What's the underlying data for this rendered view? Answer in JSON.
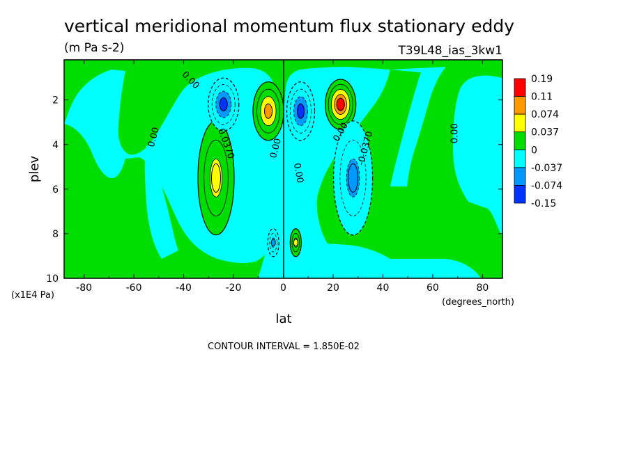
{
  "chart_data": {
    "type": "heatmap",
    "title": "vertical meridional momentum flux stationary eddy",
    "units": "(m Pa s-2)",
    "run_label": "T39L48_ias_3kw1",
    "xlabel": "lat",
    "x_units": "(degrees_north)",
    "ylabel": "plev",
    "y_units": "(x1E4 Pa)",
    "xlim": [
      -88,
      88
    ],
    "ylim": [
      10,
      0.2
    ],
    "x_ticks": [
      {
        "value": -80,
        "label": "-80"
      },
      {
        "value": -60,
        "label": "-60"
      },
      {
        "value": -40,
        "label": "-40"
      },
      {
        "value": -20,
        "label": "-20"
      },
      {
        "value": 0,
        "label": "0"
      },
      {
        "value": 20,
        "label": "20"
      },
      {
        "value": 40,
        "label": "40"
      },
      {
        "value": 60,
        "label": "60"
      },
      {
        "value": 80,
        "label": "80"
      }
    ],
    "y_ticks": [
      {
        "value": 2,
        "label": "2"
      },
      {
        "value": 4,
        "label": "4"
      },
      {
        "value": 6,
        "label": "6"
      },
      {
        "value": 8,
        "label": "8"
      },
      {
        "value": 10,
        "label": "10"
      }
    ],
    "contour_interval_text": "CONTOUR INTERVAL = 1.850E-02",
    "colorbar": {
      "colors": [
        "#ff0000",
        "#ff9900",
        "#ffff00",
        "#00dd00",
        "#00ffff",
        "#0099ff",
        "#0033ff"
      ],
      "labels": [
        "0.19",
        "0.11",
        "0.074",
        "0.037",
        "0",
        "-0.037",
        "-0.074",
        "-0.15"
      ]
    },
    "features": [
      {
        "kind": "max",
        "lat": 23,
        "plev": 2.2,
        "value": 0.15
      },
      {
        "kind": "max",
        "lat": -6,
        "plev": 2.5,
        "value": 0.09
      },
      {
        "kind": "max",
        "lat": -27,
        "plev": 5.5,
        "value": 0.045
      },
      {
        "kind": "max",
        "lat": 5,
        "plev": 8.4,
        "value": 0.04
      },
      {
        "kind": "min",
        "lat": -24,
        "plev": 2.2,
        "value": -0.09
      },
      {
        "kind": "min",
        "lat": 7,
        "plev": 2.5,
        "value": -0.09
      },
      {
        "kind": "min",
        "lat": 28,
        "plev": 5.5,
        "value": -0.06
      },
      {
        "kind": "min",
        "lat": -4,
        "plev": 8.4,
        "value": -0.04
      }
    ],
    "contour_labels": [
      {
        "text": "0.00",
        "lat": -38,
        "plev": 1.2,
        "angle": 45
      },
      {
        "text": "0.00",
        "lat": -51,
        "plev": 3.7,
        "angle": -75
      },
      {
        "text": "0.0370",
        "lat": -24,
        "plev": 4.0,
        "angle": 70
      },
      {
        "text": "0.00",
        "lat": -2,
        "plev": 4.2,
        "angle": -75
      },
      {
        "text": "0.00",
        "lat": 5,
        "plev": 5.3,
        "angle": 80
      },
      {
        "text": "0.00",
        "lat": 24,
        "plev": 3.5,
        "angle": -60
      },
      {
        "text": "-0.0370",
        "lat": 34,
        "plev": 4.2,
        "angle": -75
      },
      {
        "text": "0.00",
        "lat": 70,
        "plev": 3.5,
        "angle": -90
      }
    ]
  }
}
